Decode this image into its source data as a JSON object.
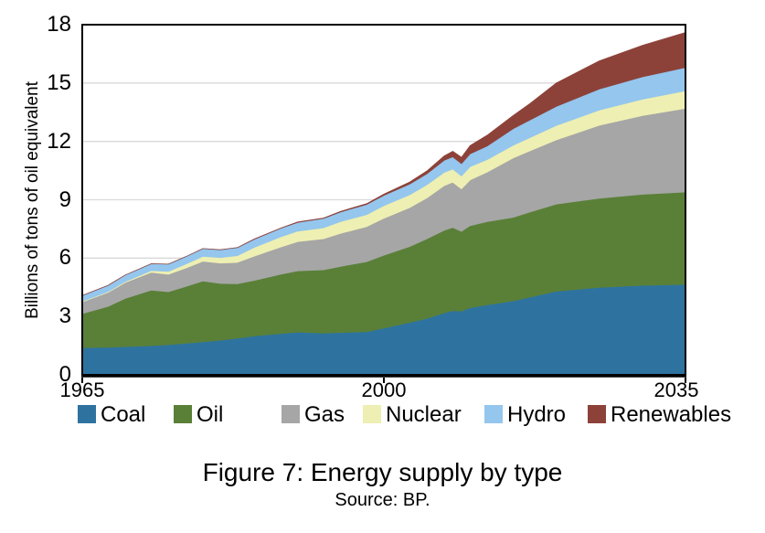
{
  "figure": {
    "caption_title": "Figure 7: Energy supply by type",
    "caption_source": "Source: BP."
  },
  "chart_data": {
    "type": "area",
    "stacked": true,
    "title": "Figure 7: Energy supply by type",
    "source_note": "Source: BP.",
    "xlabel": "",
    "ylabel": "Billions of tons of oil equivalent",
    "xlim": [
      1965,
      2035
    ],
    "ylim": [
      0,
      18
    ],
    "yticks": [
      0,
      3,
      6,
      9,
      12,
      15,
      18
    ],
    "xticks": [
      1965,
      2000,
      2035
    ],
    "grid": "horizontal",
    "legend_position": "bottom",
    "x": [
      1965,
      1968,
      1970,
      1973,
      1975,
      1977,
      1979,
      1981,
      1983,
      1985,
      1988,
      1990,
      1993,
      1995,
      1998,
      2000,
      2003,
      2005,
      2007,
      2008,
      2009,
      2010,
      2012,
      2015,
      2017,
      2020,
      2025,
      2030,
      2035
    ],
    "series": [
      {
        "name": "Coal",
        "color": "#2E73A0",
        "values": [
          1.4,
          1.42,
          1.45,
          1.5,
          1.55,
          1.62,
          1.7,
          1.78,
          1.88,
          2.0,
          2.12,
          2.2,
          2.15,
          2.18,
          2.22,
          2.4,
          2.7,
          2.9,
          3.18,
          3.3,
          3.28,
          3.45,
          3.6,
          3.8,
          4.0,
          4.3,
          4.5,
          4.6,
          4.65
        ]
      },
      {
        "name": "Oil",
        "color": "#5A8038",
        "values": [
          1.75,
          2.1,
          2.48,
          2.85,
          2.72,
          2.92,
          3.12,
          2.92,
          2.8,
          2.86,
          3.05,
          3.15,
          3.25,
          3.4,
          3.6,
          3.75,
          3.9,
          4.1,
          4.25,
          4.28,
          4.1,
          4.22,
          4.28,
          4.3,
          4.38,
          4.48,
          4.58,
          4.68,
          4.75
        ]
      },
      {
        "name": "Gas",
        "color": "#A6A6A6",
        "values": [
          0.6,
          0.72,
          0.82,
          0.92,
          0.9,
          0.95,
          1.02,
          1.05,
          1.1,
          1.25,
          1.4,
          1.5,
          1.6,
          1.7,
          1.8,
          1.9,
          2.0,
          2.1,
          2.3,
          2.32,
          2.18,
          2.35,
          2.55,
          3.05,
          3.15,
          3.3,
          3.75,
          4.05,
          4.3
        ]
      },
      {
        "name": "Nuclear",
        "color": "#EEEFB2",
        "values": [
          0.03,
          0.04,
          0.05,
          0.09,
          0.15,
          0.2,
          0.25,
          0.28,
          0.35,
          0.45,
          0.52,
          0.54,
          0.56,
          0.6,
          0.62,
          0.65,
          0.66,
          0.67,
          0.68,
          0.68,
          0.66,
          0.68,
          0.64,
          0.65,
          0.68,
          0.74,
          0.78,
          0.84,
          0.9
        ]
      },
      {
        "name": "Hydro",
        "color": "#94C6EE",
        "values": [
          0.3,
          0.32,
          0.33,
          0.35,
          0.37,
          0.38,
          0.4,
          0.4,
          0.41,
          0.42,
          0.44,
          0.45,
          0.48,
          0.5,
          0.52,
          0.53,
          0.55,
          0.57,
          0.62,
          0.63,
          0.64,
          0.66,
          0.7,
          0.85,
          0.9,
          0.98,
          1.08,
          1.15,
          1.2
        ]
      },
      {
        "name": "Renewables",
        "color": "#8D4239",
        "values": [
          0.0,
          0.0,
          0.0,
          0.0,
          0.0,
          0.0,
          0.0,
          0.0,
          0.0,
          0.01,
          0.01,
          0.02,
          0.02,
          0.03,
          0.04,
          0.06,
          0.1,
          0.14,
          0.22,
          0.28,
          0.32,
          0.42,
          0.55,
          0.68,
          0.85,
          1.2,
          1.45,
          1.62,
          1.8
        ]
      }
    ]
  },
  "axis_colors": {
    "axis": "#000000",
    "grid": "#D9D9D9"
  }
}
